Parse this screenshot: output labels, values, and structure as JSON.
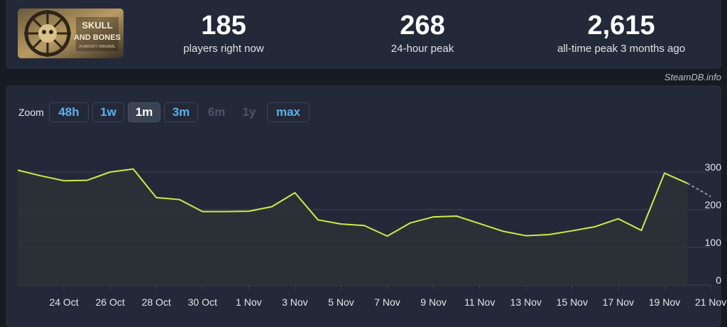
{
  "header": {
    "logo_text_1": "SKULL",
    "logo_text_2": "AND BONES",
    "logo_text_3": "A UBISOFT ORIGINAL",
    "stats": [
      {
        "value": "185",
        "label": "players right now"
      },
      {
        "value": "268",
        "label": "24-hour peak"
      },
      {
        "value": "2,615",
        "label": "all-time peak 3 months ago"
      }
    ]
  },
  "credit": "SteamDB.info",
  "zoom": {
    "label": "Zoom",
    "buttons": [
      {
        "label": "48h",
        "state": "enabled"
      },
      {
        "label": "1w",
        "state": "enabled"
      },
      {
        "label": "1m",
        "state": "active"
      },
      {
        "label": "3m",
        "state": "enabled"
      },
      {
        "label": "6m",
        "state": "disabled"
      },
      {
        "label": "1y",
        "state": "disabled"
      },
      {
        "label": "max",
        "state": "enabled"
      }
    ]
  },
  "colors": {
    "line": "#c8ee47",
    "fill": "#2b3336",
    "grid": "#3c4456",
    "axis_text": "#e3e6ec",
    "background": "#232938"
  },
  "chart_data": {
    "type": "line",
    "x_range": [
      "2023-10-22",
      "2023-11-21"
    ],
    "ylim": [
      0,
      320
    ],
    "y_ticks": [
      0,
      100,
      200,
      300
    ],
    "x_tick_labels": [
      "24 Oct",
      "26 Oct",
      "28 Oct",
      "30 Oct",
      "1 Nov",
      "3 Nov",
      "5 Nov",
      "7 Nov",
      "9 Nov",
      "11 Nov",
      "13 Nov",
      "15 Nov",
      "17 Nov",
      "19 Nov",
      "21 Nov"
    ],
    "grid": true,
    "series": [
      {
        "values": [
          [
            "2023-10-22",
            305
          ],
          [
            "2023-10-23",
            290
          ],
          [
            "2023-10-24",
            277
          ],
          [
            "2023-10-25",
            278
          ],
          [
            "2023-10-26",
            300
          ],
          [
            "2023-10-27",
            308
          ],
          [
            "2023-10-28",
            232
          ],
          [
            "2023-10-29",
            227
          ],
          [
            "2023-10-30",
            195
          ],
          [
            "2023-10-31",
            195
          ],
          [
            "2023-11-01",
            196
          ],
          [
            "2023-11-02",
            208
          ],
          [
            "2023-11-03",
            245
          ],
          [
            "2023-11-04",
            173
          ],
          [
            "2023-11-05",
            162
          ],
          [
            "2023-11-06",
            158
          ],
          [
            "2023-11-07",
            130
          ],
          [
            "2023-11-08",
            165
          ],
          [
            "2023-11-09",
            181
          ],
          [
            "2023-11-10",
            183
          ],
          [
            "2023-11-11",
            163
          ],
          [
            "2023-11-12",
            143
          ],
          [
            "2023-11-13",
            131
          ],
          [
            "2023-11-14",
            134
          ],
          [
            "2023-11-15",
            144
          ],
          [
            "2023-11-16",
            155
          ],
          [
            "2023-11-17",
            176
          ],
          [
            "2023-11-18",
            145
          ],
          [
            "2023-11-19",
            297
          ],
          [
            "2023-11-20",
            270
          ]
        ]
      }
    ],
    "projection": [
      [
        "2023-11-20",
        270
      ],
      [
        "2023-11-21",
        235
      ]
    ]
  }
}
